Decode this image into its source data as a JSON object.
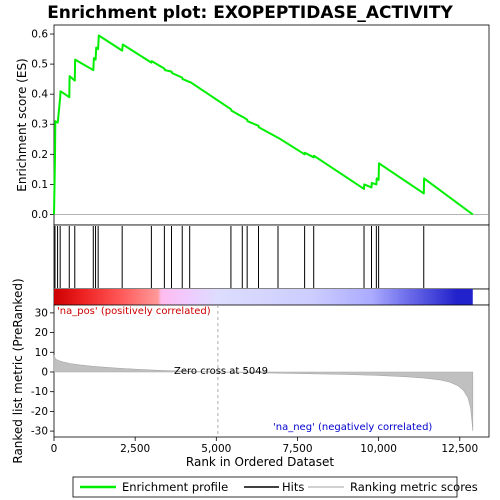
{
  "chart_data": {
    "type": "line",
    "title": "Enrichment plot: EXOPEPTIDASE_ACTIVITY",
    "top_panel": {
      "ylabel": "Enrichment score (ES)",
      "ylim": [
        -0.035,
        0.63
      ],
      "yticks": [
        0.0,
        0.1,
        0.2,
        0.3,
        0.4,
        0.5,
        0.6
      ],
      "ytick_labels": [
        "0.0",
        "0.1",
        "0.2",
        "0.3",
        "0.4",
        "0.5",
        "0.6"
      ],
      "series": [
        {
          "name": "Enrichment profile",
          "color": "#00ee00",
          "x": [
            0,
            30,
            40,
            110,
            120,
            190,
            200,
            470,
            480,
            640,
            650,
            1210,
            1230,
            1280,
            1300,
            1360,
            1380,
            2100,
            2120,
            3000,
            3010,
            3400,
            3420,
            3620,
            3640,
            3950,
            3960,
            4180,
            4200,
            5450,
            5470,
            5800,
            5810,
            5950,
            5960,
            6300,
            6310,
            6900,
            6910,
            7720,
            7730,
            8000,
            8010,
            9550,
            9560,
            9780,
            9790,
            9930,
            9940,
            10000,
            10010,
            11390,
            11400,
            12900
          ],
          "y": [
            0.0,
            0.19,
            0.31,
            0.305,
            0.31,
            0.39,
            0.41,
            0.39,
            0.46,
            0.445,
            0.515,
            0.48,
            0.52,
            0.515,
            0.555,
            0.55,
            0.595,
            0.545,
            0.565,
            0.505,
            0.51,
            0.485,
            0.48,
            0.475,
            0.47,
            0.455,
            0.45,
            0.44,
            0.44,
            0.35,
            0.345,
            0.325,
            0.325,
            0.315,
            0.31,
            0.295,
            0.29,
            0.255,
            0.255,
            0.2,
            0.205,
            0.19,
            0.195,
            0.085,
            0.1,
            0.09,
            0.105,
            0.1,
            0.12,
            0.115,
            0.17,
            0.07,
            0.12,
            0.0
          ]
        }
      ]
    },
    "hits": {
      "name": "Hits",
      "x": [
        30,
        110,
        190,
        470,
        640,
        1210,
        1280,
        1360,
        2100,
        3000,
        3400,
        3620,
        3950,
        4180,
        5450,
        5800,
        5950,
        6300,
        6900,
        7720,
        8000,
        9550,
        9780,
        9930,
        10000,
        11390
      ]
    },
    "ranking_bar": {
      "stops": [
        {
          "x": 0,
          "color": "#cc0000"
        },
        {
          "x": 900,
          "color": "#ee2222"
        },
        {
          "x": 2000,
          "color": "#ff5555"
        },
        {
          "x": 2600,
          "color": "#ff7777"
        },
        {
          "x": 3200,
          "color": "#ff9999"
        },
        {
          "x": 3300,
          "color": "#ffbbee"
        },
        {
          "x": 4200,
          "color": "#eeccff"
        },
        {
          "x": 5049,
          "color": "#ddddff"
        },
        {
          "x": 8000,
          "color": "#ccccff"
        },
        {
          "x": 9800,
          "color": "#aaaaff"
        },
        {
          "x": 10700,
          "color": "#7777ee"
        },
        {
          "x": 12400,
          "color": "#2222cc"
        },
        {
          "x": 12900,
          "color": "#2222cc"
        }
      ]
    },
    "bottom_panel": {
      "ylabel": "Ranked list metric (PreRanked)",
      "xlabel": "Rank in Ordered Dataset",
      "ylim": [
        -33,
        34
      ],
      "yticks": [
        -30,
        -20,
        -10,
        0,
        10,
        20,
        30
      ],
      "ytick_labels": [
        "-30",
        "-20",
        "-10",
        "0",
        "10",
        "20",
        "30"
      ],
      "metric": {
        "name": "Ranking metric scores",
        "color": "#c0c0c0",
        "x": [
          0,
          50,
          150,
          300,
          500,
          800,
          1200,
          1800,
          2500,
          3300,
          4200,
          5049,
          6000,
          7000,
          8000,
          9000,
          10000,
          10800,
          11400,
          11900,
          12200,
          12450,
          12620,
          12750,
          12830,
          12870,
          12900
        ],
        "y": [
          8.5,
          6.5,
          5.8,
          5.0,
          4.3,
          3.6,
          2.9,
          2.1,
          1.4,
          0.8,
          0.3,
          0.0,
          -0.3,
          -0.6,
          -0.9,
          -1.3,
          -1.8,
          -2.4,
          -3.1,
          -4.0,
          -5.2,
          -7.0,
          -9.5,
          -13.0,
          -18.0,
          -24.0,
          -30.0
        ]
      },
      "annotations": {
        "pos_label": "'na_pos' (positively correlated)",
        "neg_label": "'na_neg' (negatively correlated)",
        "zero_cross": "Zero cross at 5049",
        "zero_cross_x": 5049,
        "pos_color": "#cc0000",
        "neg_color": "#0000cc"
      }
    },
    "x_axis": {
      "xlim": [
        0,
        13400
      ],
      "xticks": [
        0,
        2500,
        5000,
        7500,
        10000,
        12500
      ],
      "xtick_labels": [
        "0",
        "2,500",
        "5,000",
        "7,500",
        "10,000",
        "12,500"
      ]
    },
    "legend": {
      "placement": "bottom",
      "items": [
        {
          "label": "Enrichment profile",
          "color": "#00ee00",
          "kind": "line"
        },
        {
          "label": "Hits",
          "color": "#000000",
          "kind": "line"
        },
        {
          "label": "Ranking metric scores",
          "color": "#c0c0c0",
          "kind": "line"
        }
      ]
    }
  }
}
